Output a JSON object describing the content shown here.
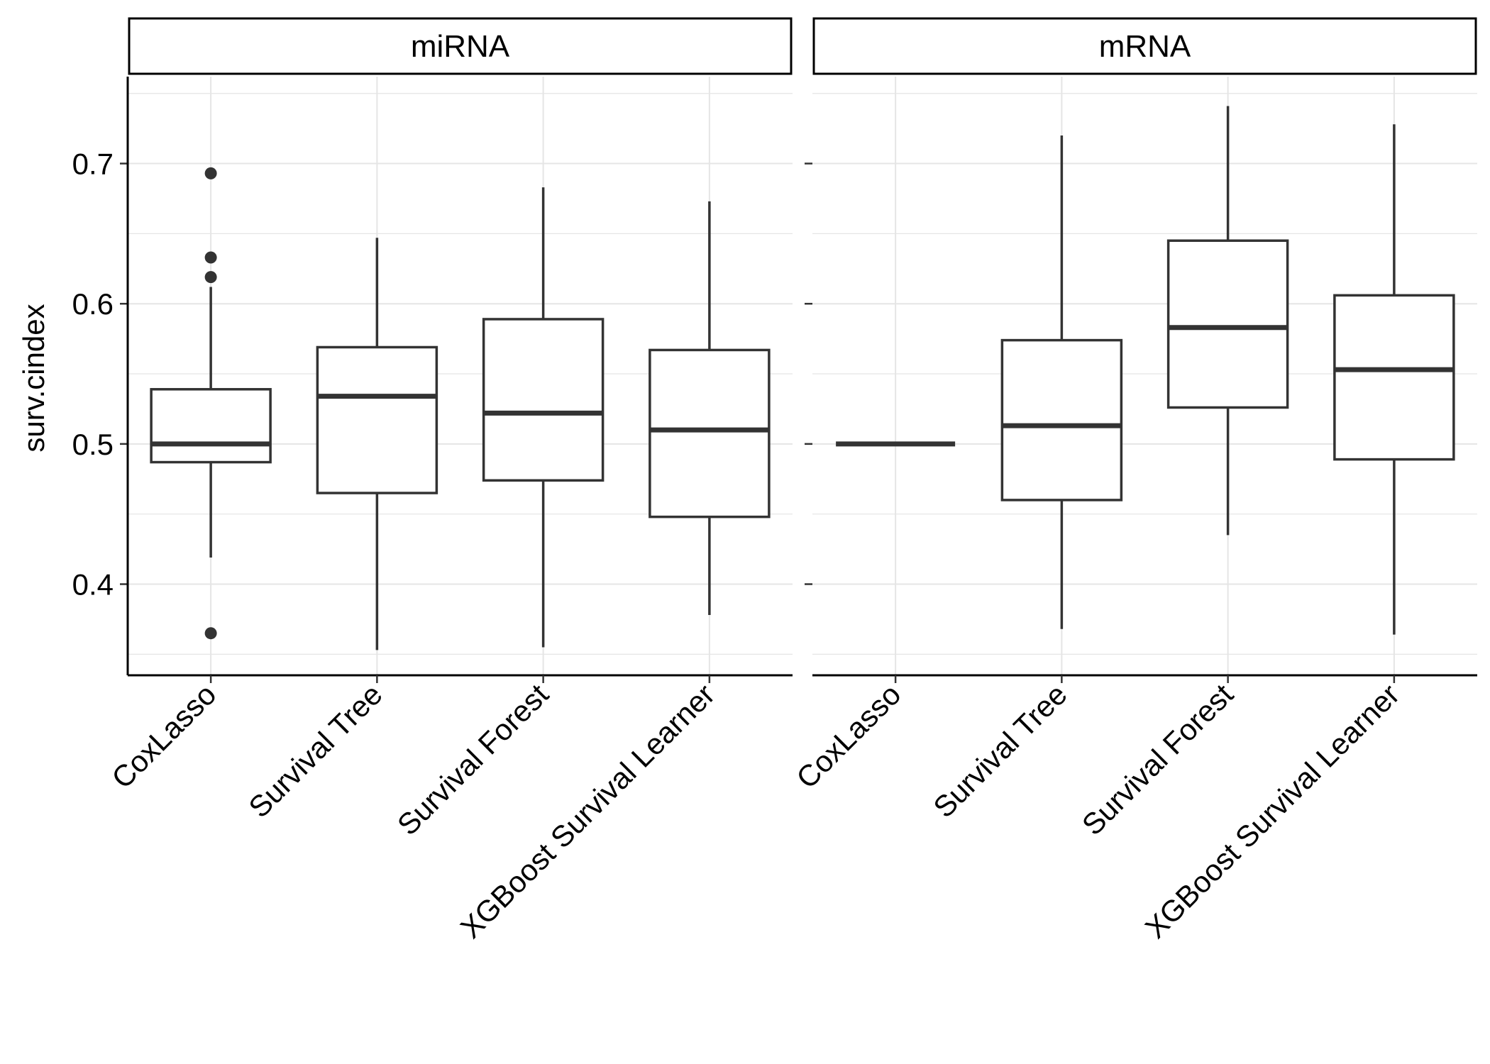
{
  "chart_data": {
    "type": "boxplot",
    "ylabel": "surv.cindex",
    "xlabel": "",
    "ylim": [
      0.335,
      0.762
    ],
    "y_ticks": [
      0.4,
      0.5,
      0.6,
      0.7
    ],
    "y_tick_labels": [
      "0.4",
      "0.5",
      "0.6",
      "0.7"
    ],
    "grid": true,
    "categories": [
      "CoxLasso",
      "Survival Tree",
      "Survival Forest",
      "XGBoost Survival Learner"
    ],
    "facets": [
      {
        "label": "miRNA",
        "boxes": [
          {
            "category": "CoxLasso",
            "whisker_low": 0.419,
            "q1": 0.487,
            "median": 0.5,
            "q3": 0.539,
            "whisker_high": 0.612,
            "outliers": [
              0.693,
              0.633,
              0.619,
              0.365
            ]
          },
          {
            "category": "Survival Tree",
            "whisker_low": 0.353,
            "q1": 0.465,
            "median": 0.534,
            "q3": 0.569,
            "whisker_high": 0.647,
            "outliers": []
          },
          {
            "category": "Survival Forest",
            "whisker_low": 0.355,
            "q1": 0.474,
            "median": 0.522,
            "q3": 0.589,
            "whisker_high": 0.683,
            "outliers": []
          },
          {
            "category": "XGBoost Survival Learner",
            "whisker_low": 0.378,
            "q1": 0.448,
            "median": 0.51,
            "q3": 0.567,
            "whisker_high": 0.673,
            "outliers": []
          }
        ]
      },
      {
        "label": "mRNA",
        "boxes": [
          {
            "category": "CoxLasso",
            "whisker_low": 0.5,
            "q1": 0.5,
            "median": 0.5,
            "q3": 0.5,
            "whisker_high": 0.5,
            "outliers": []
          },
          {
            "category": "Survival Tree",
            "whisker_low": 0.368,
            "q1": 0.46,
            "median": 0.513,
            "q3": 0.574,
            "whisker_high": 0.72,
            "outliers": []
          },
          {
            "category": "Survival Forest",
            "whisker_low": 0.435,
            "q1": 0.526,
            "median": 0.583,
            "q3": 0.645,
            "whisker_high": 0.741,
            "outliers": []
          },
          {
            "category": "XGBoost Survival Learner",
            "whisker_low": 0.364,
            "q1": 0.489,
            "median": 0.553,
            "q3": 0.606,
            "whisker_high": 0.728,
            "outliers": []
          }
        ]
      }
    ],
    "colors": {
      "box_line": "#333333",
      "outlier": "#333333",
      "grid": "#e5e5e5",
      "axis": "#000000"
    }
  }
}
